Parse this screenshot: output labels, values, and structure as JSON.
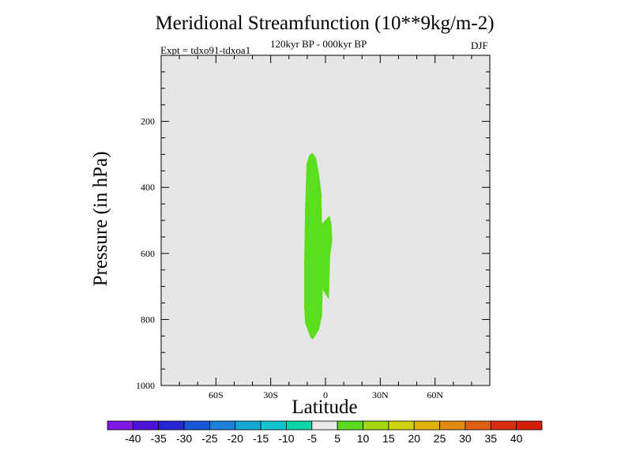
{
  "chart_data": {
    "type": "contour",
    "title": "Meridional Streamfunction (10**9kg/m-2)",
    "subtitle": "120kyr BP - 000kyr BP",
    "experiment": "Expt = tdxo91-tdxoa1",
    "season": "DJF",
    "xlabel": "Latitude",
    "ylabel": "Pressure (in hPa)",
    "xlim": [
      -90,
      90
    ],
    "ylim": [
      1000,
      0
    ],
    "x_ticks": [
      {
        "value": -60,
        "label": "60S"
      },
      {
        "value": -30,
        "label": "30S"
      },
      {
        "value": 0,
        "label": "0"
      },
      {
        "value": 30,
        "label": "30N"
      },
      {
        "value": 60,
        "label": "60N"
      }
    ],
    "y_ticks": [
      {
        "value": 200,
        "label": "200"
      },
      {
        "value": 400,
        "label": "400"
      },
      {
        "value": 600,
        "label": "600"
      },
      {
        "value": 800,
        "label": "800"
      },
      {
        "value": 1000,
        "label": "1000"
      }
    ],
    "background_color": "#e6e6e6",
    "regions": [
      {
        "level_range": [
          5,
          10
        ],
        "color": "#5ade1e",
        "points": [
          [
            -7.3,
            295
          ],
          [
            -5.2,
            310
          ],
          [
            -3.5,
            360
          ],
          [
            -2.2,
            420
          ],
          [
            -1.9,
            510
          ],
          [
            2.2,
            485
          ],
          [
            3.3,
            510
          ],
          [
            3.7,
            560
          ],
          [
            2.6,
            605
          ],
          [
            2.2,
            670
          ],
          [
            1.9,
            740
          ],
          [
            -1.5,
            710
          ],
          [
            -1.9,
            790
          ],
          [
            -3.5,
            830
          ],
          [
            -6.9,
            860
          ],
          [
            -8.2,
            855
          ],
          [
            -11.2,
            810
          ],
          [
            -11.7,
            760
          ],
          [
            -11.7,
            630
          ],
          [
            -11.2,
            470
          ],
          [
            -10.4,
            330
          ],
          [
            -9.1,
            305
          ]
        ]
      }
    ],
    "colorbar": {
      "labels": [
        "-40",
        "-35",
        "-30",
        "-25",
        "-20",
        "-15",
        "-10",
        "-5",
        "5",
        "10",
        "15",
        "20",
        "25",
        "30",
        "35",
        "40"
      ],
      "colors": [
        "#7f18e4",
        "#4c13d6",
        "#2428d4",
        "#1755d9",
        "#1a83d9",
        "#13a8d6",
        "#11c4cf",
        "#0ad6a8",
        "#e9e9e9",
        "#5adc1e",
        "#a2d512",
        "#cdd40b",
        "#e0b208",
        "#e08a10",
        "#df5e10",
        "#d92d11",
        "#d61d08"
      ]
    }
  }
}
